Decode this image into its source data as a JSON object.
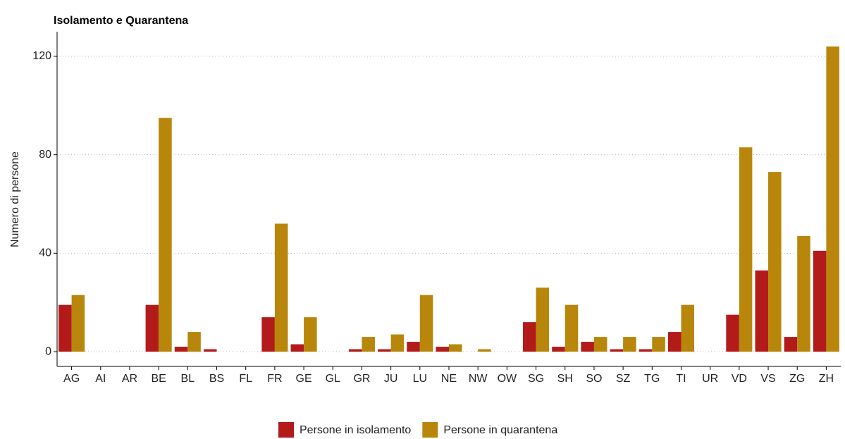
{
  "chart_data": {
    "type": "bar",
    "title": "Isolamento e Quarantena",
    "y_label": "Numero di persone",
    "categories": [
      "AG",
      "AI",
      "AR",
      "BE",
      "BL",
      "BS",
      "FL",
      "FR",
      "GE",
      "GL",
      "GR",
      "JU",
      "LU",
      "NE",
      "NW",
      "OW",
      "SG",
      "SH",
      "SO",
      "SZ",
      "TG",
      "TI",
      "UR",
      "VD",
      "VS",
      "ZG",
      "ZH"
    ],
    "series": [
      {
        "name": "Persone in isolamento",
        "color": "#b31b1b",
        "values": [
          19,
          0,
          0,
          19,
          2,
          1,
          0,
          14,
          3,
          0,
          1,
          1,
          4,
          2,
          0,
          0,
          12,
          2,
          4,
          1,
          1,
          8,
          0,
          15,
          33,
          6,
          41
        ]
      },
      {
        "name": "Persone in quarantena",
        "color": "#b8860b",
        "values": [
          23,
          0,
          0,
          95,
          8,
          0,
          0,
          52,
          14,
          0,
          6,
          7,
          23,
          3,
          1,
          0,
          26,
          19,
          6,
          6,
          6,
          19,
          0,
          83,
          73,
          47,
          124
        ]
      }
    ],
    "ylim": [
      -6,
      130
    ],
    "yticks": [
      0,
      40,
      80,
      120
    ],
    "grid": true,
    "legend": "bottom"
  }
}
